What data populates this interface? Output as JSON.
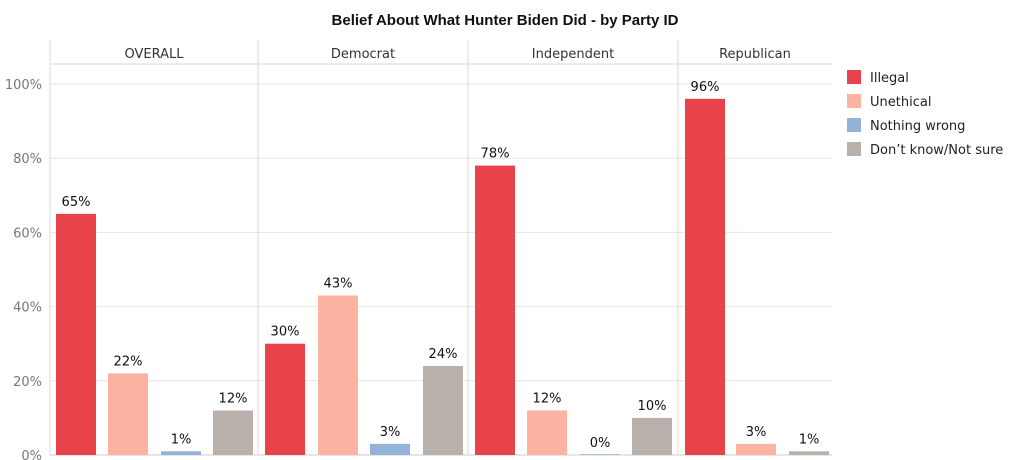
{
  "chart_data": {
    "type": "bar",
    "title": "Belief About What Hunter Biden Did - by Party ID",
    "panels": [
      "OVERALL",
      "Democrat",
      "Independent",
      "Republican"
    ],
    "series": [
      {
        "name": "Illegal",
        "color": "#e8434a",
        "values": [
          65,
          30,
          78,
          96
        ],
        "labels": [
          "65%",
          "30%",
          "78%",
          "96%"
        ]
      },
      {
        "name": "Unethical",
        "color": "#fdb3a2",
        "values": [
          22,
          43,
          12,
          3
        ],
        "labels": [
          "22%",
          "43%",
          "12%",
          "3%"
        ]
      },
      {
        "name": "Nothing wrong",
        "color": "#92b3d7",
        "values": [
          1,
          3,
          0,
          null
        ],
        "labels": [
          "1%",
          "3%",
          "0%",
          ""
        ]
      },
      {
        "name": "Don’t know/Not sure",
        "color": "#b9afab",
        "values": [
          12,
          24,
          10,
          1
        ],
        "labels": [
          "12%",
          "24%",
          "10%",
          "1%"
        ]
      }
    ],
    "ylim": [
      0,
      100
    ],
    "yticks": [
      0,
      20,
      40,
      60,
      80,
      100
    ],
    "ytick_labels": [
      "0%",
      "20%",
      "40%",
      "60%",
      "80%",
      "100%"
    ],
    "grid": true,
    "legend_position": "right"
  }
}
